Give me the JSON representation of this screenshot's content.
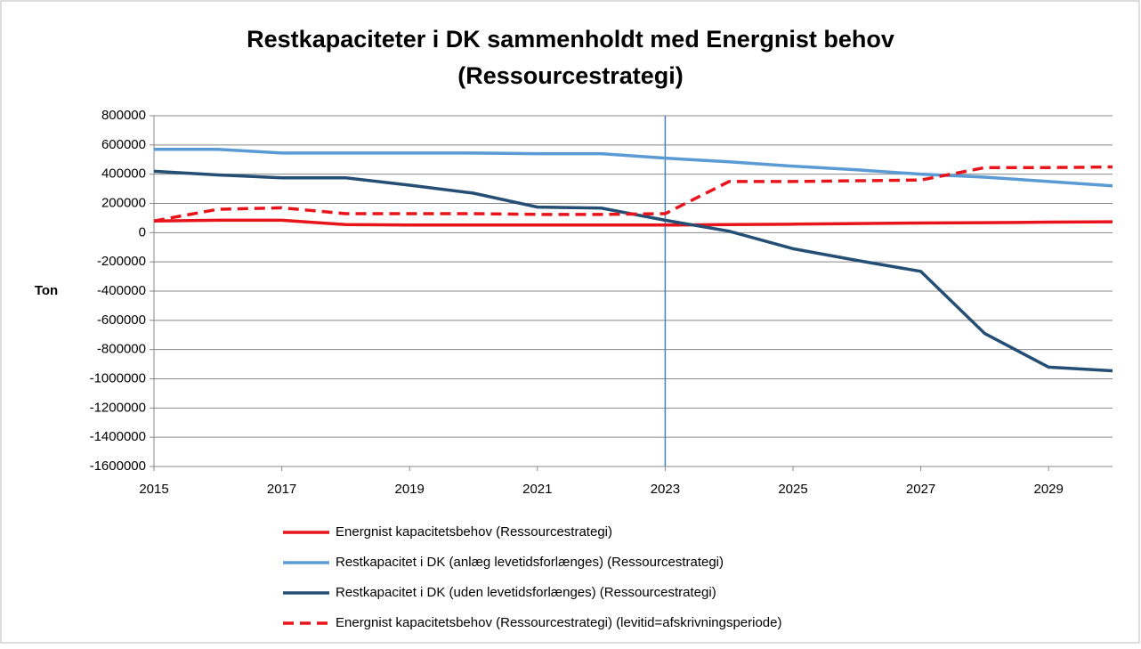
{
  "chart_data": {
    "type": "line",
    "title": [
      "Restkapaciteter i DK sammenholdt med Energnist behov",
      "(Ressourcestrategi)"
    ],
    "y_label": "Ton",
    "x": [
      2015,
      2016,
      2017,
      2018,
      2019,
      2020,
      2021,
      2022,
      2023,
      2024,
      2025,
      2026,
      2027,
      2028,
      2029,
      2030
    ],
    "xlim": [
      2015,
      2030
    ],
    "xticks": [
      2015,
      2017,
      2019,
      2021,
      2023,
      2025,
      2027,
      2029
    ],
    "ylim": [
      -1600000,
      800000
    ],
    "yticks": [
      -1600000,
      -1400000,
      -1200000,
      -1000000,
      -800000,
      -600000,
      -400000,
      -200000,
      0,
      200000,
      400000,
      600000,
      800000
    ],
    "grid": true,
    "vline": 2023,
    "vline_color": "#4a7ebb",
    "legend": "bottom",
    "series": [
      {
        "name": "Energnist kapacitetsbehov  (Ressourcestrategi)",
        "color": "#e8141c",
        "dash": false,
        "values": [
          80000,
          85000,
          85000,
          55000,
          52000,
          52000,
          52000,
          52000,
          52000,
          55000,
          58000,
          62000,
          66000,
          68000,
          72000,
          74000
        ]
      },
      {
        "name": "Restkapacitet i DK (anlæg levetidsforlænges) (Ressourcestrategi)",
        "color": "#5b9bd5",
        "dash": false,
        "values": [
          570000,
          570000,
          545000,
          545000,
          545000,
          545000,
          540000,
          540000,
          510000,
          485000,
          455000,
          430000,
          400000,
          380000,
          350000,
          320000
        ]
      },
      {
        "name": "Restkapacitet i DK (uden levetidsforlænges) (Ressourcestrategi)",
        "color": "#254e74",
        "dash": false,
        "values": [
          420000,
          395000,
          375000,
          375000,
          325000,
          270000,
          175000,
          168000,
          85000,
          10000,
          -110000,
          -190000,
          -265000,
          -690000,
          -920000,
          -945000
        ]
      },
      {
        "name": "Energnist kapacitetsbehov  (Ressourcestrategi) (levitid=afskrivningsperiode)",
        "color": "#e8141c",
        "dash": true,
        "values": [
          80000,
          160000,
          170000,
          130000,
          130000,
          130000,
          125000,
          125000,
          130000,
          350000,
          350000,
          355000,
          360000,
          445000,
          445000,
          450000
        ]
      }
    ]
  }
}
